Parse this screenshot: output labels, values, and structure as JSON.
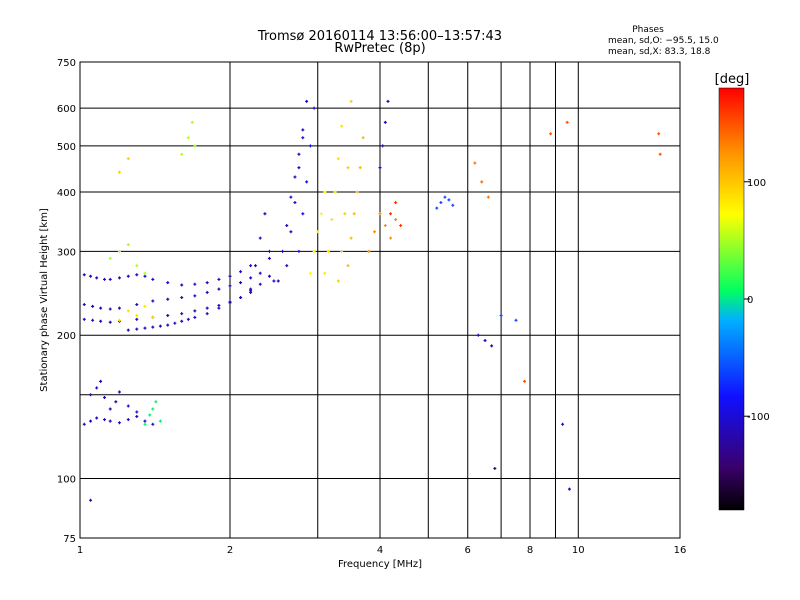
{
  "header": {
    "title_line1": "Tromsø 20160114 13:56:00–13:57:43",
    "title_line2": "RwPretec (8p)",
    "stats_title": "Phases",
    "stats_line1": "mean, sd,O: −95.5, 15.0",
    "stats_line2": "mean, sd,X:  83.3, 18.8"
  },
  "chart_data": {
    "type": "scatter",
    "xlabel": "Frequency [MHz]",
    "ylabel": "Stationary phase Virtual Height [km]",
    "x_scale": "log",
    "y_scale": "log",
    "xlim": [
      1,
      16
    ],
    "ylim": [
      75,
      750
    ],
    "x_ticks": [
      1,
      2,
      4,
      6,
      8,
      10,
      16
    ],
    "x_minor": [
      3,
      5,
      7,
      9
    ],
    "y_ticks": [
      75,
      100,
      200,
      300,
      400,
      500,
      600,
      750
    ],
    "y_minor": [
      150
    ],
    "grid": true,
    "colorbar": {
      "label": "[deg]",
      "min": -180,
      "max": 180,
      "ticks": [
        100,
        0,
        -100
      ],
      "colors": [
        "#000000",
        "#3a006a",
        "#1010ff",
        "#00b0ff",
        "#00ff60",
        "#ffff00",
        "#ff9000",
        "#ff0000"
      ]
    },
    "series": [
      {
        "x": [
          1.02,
          1.05,
          1.08,
          1.12,
          1.15,
          1.2,
          1.25,
          1.3,
          1.35,
          1.4,
          1.5,
          1.6,
          1.7,
          1.8,
          1.9,
          2.0,
          2.1,
          2.2,
          2.4
        ],
        "y": [
          268,
          266,
          264,
          262,
          262,
          264,
          266,
          268,
          266,
          262,
          258,
          255,
          256,
          258,
          262,
          266,
          272,
          280,
          290
        ],
        "v": -100
      },
      {
        "x": [
          1.02,
          1.06,
          1.1,
          1.15,
          1.2,
          1.3,
          1.4,
          1.5,
          1.6,
          1.7,
          1.8,
          1.9,
          2.0,
          2.1,
          2.2,
          2.3
        ],
        "y": [
          232,
          230,
          228,
          227,
          228,
          232,
          236,
          238,
          240,
          242,
          246,
          250,
          254,
          258,
          264,
          270
        ],
        "v": -100
      },
      {
        "x": [
          1.02,
          1.06,
          1.1,
          1.15,
          1.2,
          1.3,
          1.4,
          1.5,
          1.6,
          1.7,
          1.8,
          1.9,
          2.0,
          2.1,
          2.2
        ],
        "y": [
          216,
          215,
          214,
          213,
          214,
          216,
          218,
          220,
          222,
          225,
          228,
          231,
          235,
          240,
          246
        ],
        "v": -100
      },
      {
        "x": [
          1.25,
          1.3,
          1.35,
          1.4,
          1.45,
          1.5,
          1.55,
          1.6,
          1.65,
          1.7,
          1.8,
          1.9,
          2.0,
          2.1,
          2.2,
          2.3,
          2.4
        ],
        "y": [
          205,
          206,
          207,
          208,
          209,
          210,
          212,
          214,
          216,
          218,
          222,
          228,
          234,
          240,
          248,
          256,
          266
        ],
        "v": -100
      },
      {
        "x": [
          2.2,
          2.25,
          2.3,
          2.35,
          2.4,
          2.45
        ],
        "y": [
          250,
          280,
          320,
          360,
          300,
          260
        ],
        "v": -100
      },
      {
        "x": [
          1.02,
          1.05,
          1.08,
          1.12,
          1.15,
          1.2,
          1.25,
          1.3,
          1.35,
          1.4
        ],
        "y": [
          130,
          132,
          134,
          133,
          132,
          131,
          133,
          135,
          132,
          130
        ],
        "v": -100
      },
      {
        "x": [
          1.05,
          1.08,
          1.1,
          1.12,
          1.15,
          1.18,
          1.2,
          1.25,
          1.3
        ],
        "y": [
          150,
          155,
          160,
          148,
          140,
          145,
          152,
          142,
          138
        ],
        "v": -100
      },
      {
        "x": [
          1.35,
          1.38,
          1.4,
          1.42,
          1.45
        ],
        "y": [
          130,
          136,
          140,
          145,
          132
        ],
        "v": 20
      },
      {
        "x": [
          1.15,
          1.2,
          1.25,
          1.3,
          1.35
        ],
        "y": [
          290,
          300,
          310,
          280,
          270
        ],
        "v": 60
      },
      {
        "x": [
          1.2,
          1.25,
          1.3,
          1.35,
          1.4
        ],
        "y": [
          215,
          225,
          220,
          230,
          218
        ],
        "v": 90
      },
      {
        "x": [
          1.6,
          1.65,
          1.68,
          1.7
        ],
        "y": [
          480,
          520,
          560,
          500
        ],
        "v": 60
      },
      {
        "x": [
          1.2,
          1.25
        ],
        "y": [
          440,
          470
        ],
        "v": 100
      },
      {
        "x": [
          2.5,
          2.55,
          2.6,
          2.65,
          2.7,
          2.75,
          2.8
        ],
        "y": [
          260,
          300,
          340,
          390,
          430,
          480,
          540
        ],
        "v": -100
      },
      {
        "x": [
          2.6,
          2.65,
          2.7,
          2.75,
          2.8,
          2.85
        ],
        "y": [
          280,
          330,
          380,
          450,
          520,
          620
        ],
        "v": -100
      },
      {
        "x": [
          2.75,
          2.8,
          2.85,
          2.9,
          2.95
        ],
        "y": [
          300,
          360,
          420,
          500,
          600
        ],
        "v": -80
      },
      {
        "x": [
          2.9,
          2.95,
          3.0,
          3.05,
          3.1
        ],
        "y": [
          270,
          300,
          330,
          360,
          400
        ],
        "v": 80
      },
      {
        "x": [
          3.1,
          3.15,
          3.2,
          3.25,
          3.3,
          3.35
        ],
        "y": [
          270,
          300,
          350,
          400,
          470,
          550
        ],
        "v": 90
      },
      {
        "x": [
          3.3,
          3.35,
          3.4,
          3.45,
          3.5
        ],
        "y": [
          260,
          300,
          360,
          450,
          620
        ],
        "v": 100
      },
      {
        "x": [
          3.45,
          3.5,
          3.55,
          3.6,
          3.65,
          3.7
        ],
        "y": [
          280,
          320,
          360,
          400,
          450,
          520
        ],
        "v": 110
      },
      {
        "x": [
          3.8,
          3.9,
          4.0,
          4.1,
          4.2,
          4.3
        ],
        "y": [
          300,
          330,
          360,
          340,
          320,
          350
        ],
        "v": 130
      },
      {
        "x": [
          4.0,
          4.05,
          4.1,
          4.15
        ],
        "y": [
          450,
          500,
          560,
          620
        ],
        "v": -100
      },
      {
        "x": [
          4.2,
          4.3,
          4.4
        ],
        "y": [
          360,
          380,
          340
        ],
        "v": 160
      },
      {
        "x": [
          5.2,
          5.3,
          5.4,
          5.5,
          5.6
        ],
        "y": [
          370,
          380,
          390,
          385,
          375
        ],
        "v": -60
      },
      {
        "x": [
          6.2,
          6.4,
          6.6
        ],
        "y": [
          460,
          420,
          390
        ],
        "v": 140
      },
      {
        "x": [
          6.3,
          6.5,
          6.7
        ],
        "y": [
          200,
          195,
          190
        ],
        "v": -100
      },
      {
        "x": [
          7.0,
          7.5
        ],
        "y": [
          220,
          215
        ],
        "v": -60
      },
      {
        "x": [
          7.8
        ],
        "y": [
          160
        ],
        "v": 150
      },
      {
        "x": [
          8.8,
          9.5
        ],
        "y": [
          530,
          560
        ],
        "v": 150
      },
      {
        "x": [
          9.3,
          9.6
        ],
        "y": [
          130,
          95
        ],
        "v": -100
      },
      {
        "x": [
          14.5,
          14.6
        ],
        "y": [
          530,
          480
        ],
        "v": 150
      },
      {
        "x": [
          1.05
        ],
        "y": [
          90
        ],
        "v": -100
      },
      {
        "x": [
          6.8
        ],
        "y": [
          105
        ],
        "v": -120
      }
    ]
  }
}
